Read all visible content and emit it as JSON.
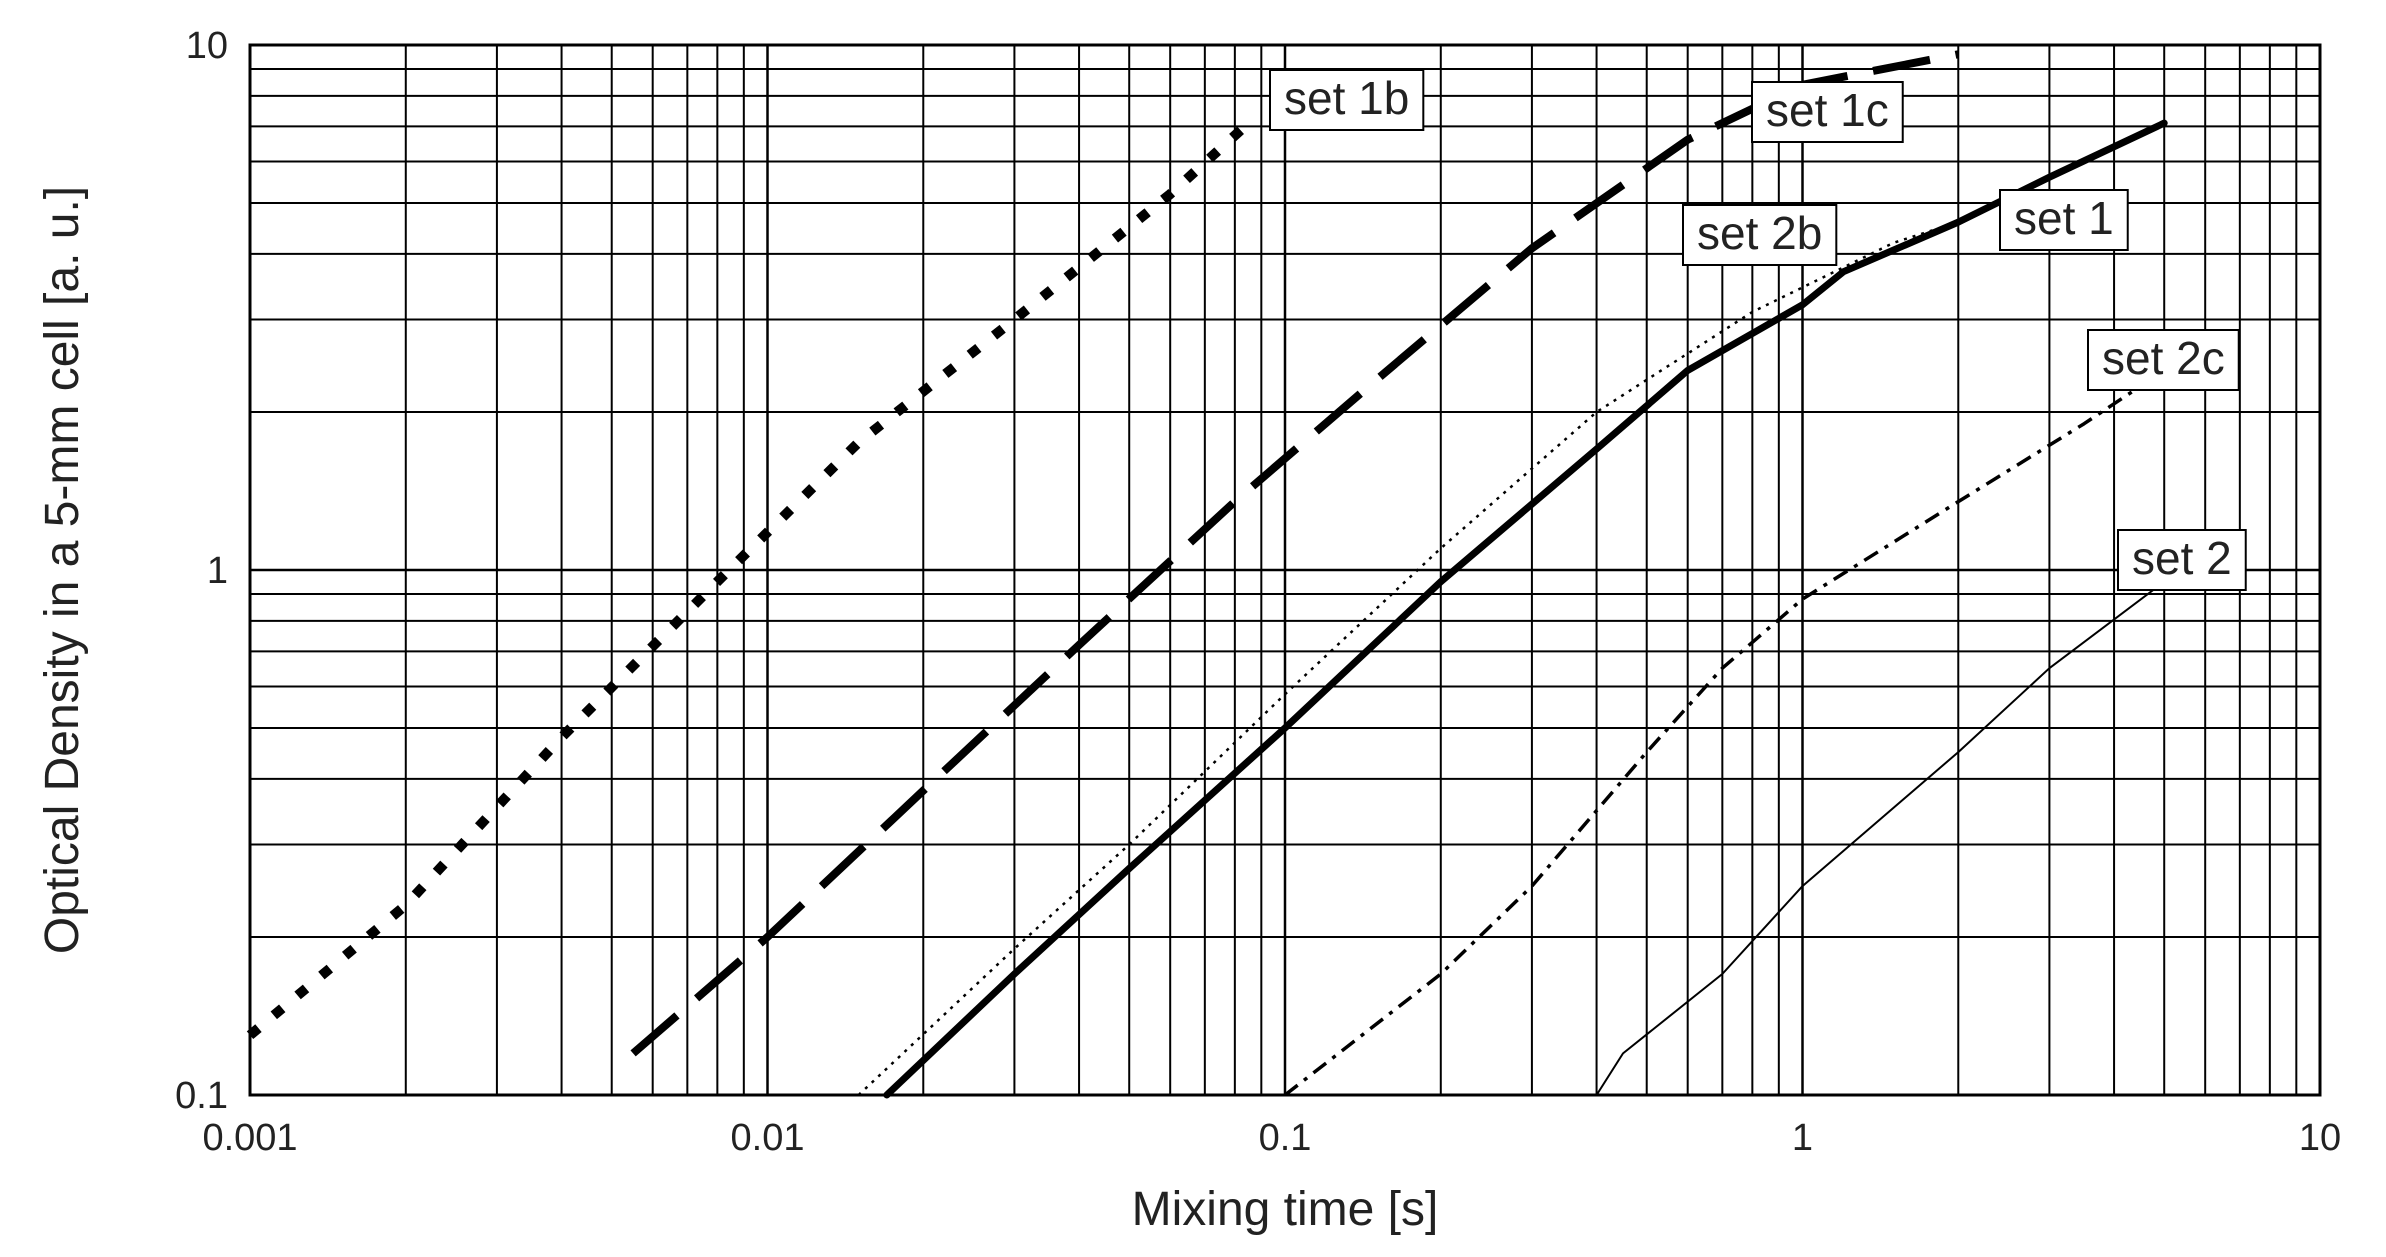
{
  "chart_data": {
    "type": "line",
    "title": "",
    "xlabel": "Mixing time [s]",
    "ylabel": "Optical Density in a 5-mm cell [a. u.]",
    "xscale": "log",
    "yscale": "log",
    "xlim": [
      0.001,
      10
    ],
    "ylim": [
      0.1,
      10
    ],
    "grid": true,
    "legend": "inline labels next to each curve",
    "x_tick_labels": [
      "0.001",
      "0.01",
      "0.1",
      "1",
      "10"
    ],
    "y_tick_labels": [
      "0.1",
      "1",
      "10"
    ],
    "series": [
      {
        "name": "set 1b",
        "style": "thick dotted",
        "points": [
          [
            0.001,
            0.13
          ],
          [
            0.002,
            0.23
          ],
          [
            0.004,
            0.48
          ],
          [
            0.008,
            0.95
          ],
          [
            0.015,
            1.75
          ],
          [
            0.03,
            3.0
          ],
          [
            0.06,
            5.2
          ],
          [
            0.085,
            7.1
          ]
        ]
      },
      {
        "name": "set 1c",
        "style": "long dash",
        "points": [
          [
            0.0055,
            0.12
          ],
          [
            0.01,
            0.2
          ],
          [
            0.02,
            0.38
          ],
          [
            0.04,
            0.72
          ],
          [
            0.08,
            1.35
          ],
          [
            0.15,
            2.3
          ],
          [
            0.3,
            4.1
          ],
          [
            0.6,
            6.6
          ],
          [
            1.0,
            8.4
          ],
          [
            2.0,
            9.6
          ]
        ]
      },
      {
        "name": "set 1",
        "style": "thick solid",
        "points": [
          [
            0.017,
            0.1
          ],
          [
            0.03,
            0.17
          ],
          [
            0.05,
            0.27
          ],
          [
            0.1,
            0.5
          ],
          [
            0.2,
            0.95
          ],
          [
            0.4,
            1.7
          ],
          [
            0.6,
            2.4
          ],
          [
            1.0,
            3.2
          ],
          [
            1.2,
            3.7
          ],
          [
            2.0,
            4.6
          ],
          [
            3.0,
            5.6
          ],
          [
            5.0,
            7.1
          ]
        ]
      },
      {
        "name": "set 2b",
        "style": "thin dotted",
        "points": [
          [
            0.015,
            0.1
          ],
          [
            0.03,
            0.19
          ],
          [
            0.05,
            0.3
          ],
          [
            0.1,
            0.58
          ],
          [
            0.2,
            1.1
          ],
          [
            0.4,
            2.0
          ],
          [
            0.8,
            3.1
          ],
          [
            1.5,
            4.2
          ],
          [
            2.0,
            4.6
          ]
        ]
      },
      {
        "name": "set 2c",
        "style": "thin dash-dot",
        "points": [
          [
            0.1,
            0.1
          ],
          [
            0.2,
            0.17
          ],
          [
            0.3,
            0.25
          ],
          [
            0.5,
            0.45
          ],
          [
            0.7,
            0.65
          ],
          [
            1.0,
            0.88
          ],
          [
            2.0,
            1.35
          ],
          [
            3.5,
            1.9
          ],
          [
            5.0,
            2.4
          ]
        ]
      },
      {
        "name": "set 2",
        "style": "thin solid",
        "points": [
          [
            0.4,
            0.1
          ],
          [
            0.45,
            0.12
          ],
          [
            0.7,
            0.17
          ],
          [
            1.0,
            0.25
          ],
          [
            2.0,
            0.45
          ],
          [
            3.0,
            0.65
          ],
          [
            5.0,
            0.95
          ]
        ]
      }
    ]
  }
}
